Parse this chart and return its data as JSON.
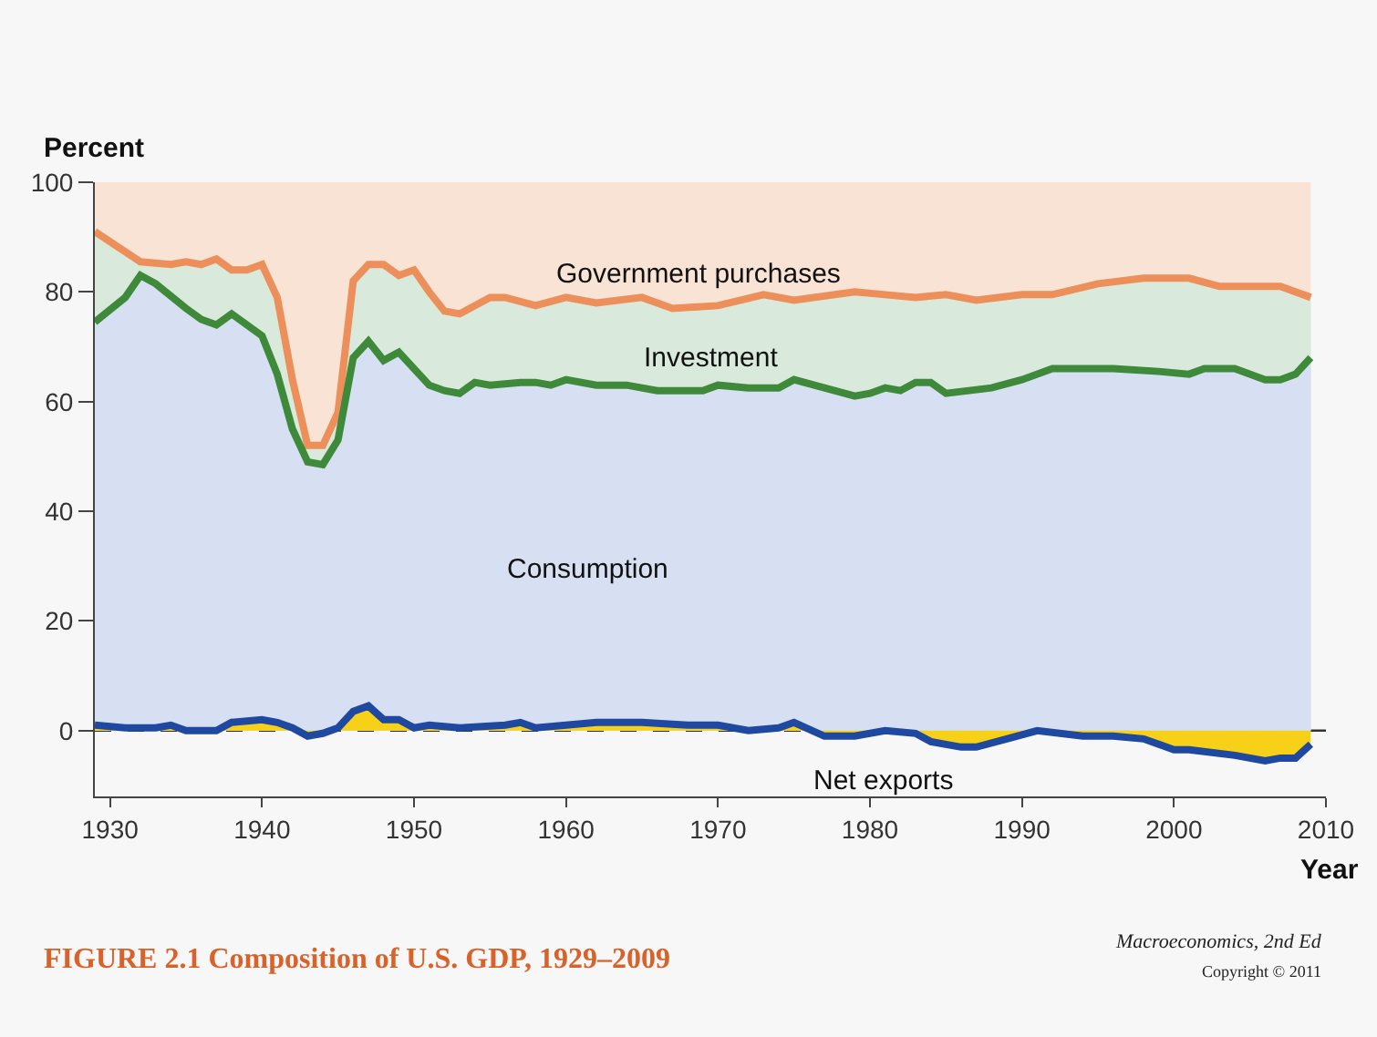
{
  "chart_data": {
    "type": "area",
    "title": "FIGURE 2.1 Composition of U.S. GDP, 1929–2009",
    "xlabel": "Year",
    "ylabel": "Percent",
    "annotations": [
      "Macroeconomics, 2nd Ed",
      "Copyright © 2011"
    ],
    "xlim": [
      1929,
      2010
    ],
    "xticks": [
      1930,
      1940,
      1950,
      1960,
      1970,
      1980,
      1990,
      2000,
      2010
    ],
    "ylim": [
      -12,
      100
    ],
    "yticks": [
      0,
      20,
      40,
      60,
      80,
      100
    ],
    "grid": false,
    "legend": false,
    "marker": "none",
    "line_style": "solid",
    "colors": [
      "#f8e3d4",
      "#ec8f5a",
      "#3f8a3a",
      "#1f48a0"
    ],
    "ref_lines": [
      {
        "axis": "y",
        "value": 0,
        "color": "#333333",
        "line_style": "dashed"
      }
    ],
    "series": [
      {
        "name": "Government purchases",
        "color": "#f8e3d4",
        "x": [
          1929,
          2009
        ],
        "values": [
          100,
          100
        ]
      },
      {
        "name": "Investment",
        "color": "#d9eadc",
        "x": [
          1929,
          1932,
          1934,
          1935,
          1936,
          1937,
          1938,
          1939,
          1940,
          1941,
          1942,
          1943,
          1944,
          1945,
          1946,
          1947,
          1948,
          1949,
          1950,
          1951,
          1952,
          1953,
          1955,
          1956,
          1958,
          1960,
          1962,
          1965,
          1967,
          1970,
          1973,
          1975,
          1979,
          1981,
          1983,
          1985,
          1987,
          1990,
          1992,
          1995,
          1998,
          2001,
          2003,
          2007,
          2009
        ],
        "values": [
          91,
          85.5,
          85,
          85.5,
          85,
          86,
          84,
          84,
          85,
          79,
          64,
          52,
          52,
          58,
          82,
          85,
          85,
          83,
          84,
          80,
          76.5,
          76,
          79,
          79,
          77.5,
          79,
          78,
          79,
          77,
          77.5,
          79.5,
          78.5,
          80,
          79.5,
          79,
          79.5,
          78.5,
          79.5,
          79.5,
          81.5,
          82.5,
          82.5,
          81,
          81,
          79
        ]
      },
      {
        "name": "Consumption",
        "color": "#d6e0f2",
        "x": [
          1929,
          1931,
          1932,
          1933,
          1935,
          1936,
          1937,
          1938,
          1940,
          1941,
          1942,
          1943,
          1944,
          1945,
          1946,
          1947,
          1948,
          1949,
          1951,
          1952,
          1953,
          1954,
          1955,
          1957,
          1958,
          1959,
          1960,
          1962,
          1964,
          1966,
          1969,
          1970,
          1972,
          1974,
          1975,
          1977,
          1979,
          1980,
          1981,
          1982,
          1983,
          1984,
          1985,
          1988,
          1990,
          1992,
          1996,
          1999,
          2001,
          2002,
          2004,
          2006,
          2007,
          2008,
          2009
        ],
        "values": [
          74.5,
          79,
          83,
          81.5,
          77,
          75,
          74,
          76,
          72,
          65,
          55,
          49,
          48.5,
          53,
          68,
          71,
          67.5,
          69,
          63,
          62,
          61.5,
          63.5,
          63,
          63.5,
          63.5,
          63,
          64,
          63,
          63,
          62,
          62,
          63,
          62.5,
          62.5,
          64,
          62.5,
          61,
          61.5,
          62.5,
          62,
          63.5,
          63.5,
          61.5,
          62.5,
          64,
          66,
          66,
          65.5,
          65,
          66,
          66,
          64,
          64,
          65,
          68
        ]
      },
      {
        "name": "Net exports",
        "color": "#f7d117",
        "x": [
          1929,
          1931,
          1933,
          1934,
          1935,
          1937,
          1938,
          1940,
          1941,
          1942,
          1943,
          1944,
          1945,
          1946,
          1947,
          1948,
          1949,
          1950,
          1951,
          1953,
          1956,
          1957,
          1958,
          1960,
          1962,
          1965,
          1968,
          1970,
          1972,
          1974,
          1975,
          1977,
          1979,
          1981,
          1983,
          1984,
          1986,
          1987,
          1989,
          1991,
          1994,
          1996,
          1998,
          2000,
          2001,
          2004,
          2006,
          2007,
          2008,
          2009
        ],
        "values": [
          1,
          0.5,
          0.5,
          1,
          0,
          0,
          1.5,
          2,
          1.5,
          0.5,
          -1,
          -0.5,
          0.5,
          3.5,
          4.5,
          2,
          2,
          0.5,
          1,
          0.5,
          1,
          1.5,
          0.5,
          1,
          1.5,
          1.5,
          1,
          1,
          0,
          0.5,
          1.5,
          -1,
          -1,
          0,
          -0.5,
          -2,
          -3,
          -3,
          -1.5,
          0,
          -1,
          -1,
          -1.5,
          -3.5,
          -3.5,
          -4.5,
          -5.5,
          -5,
          -5,
          -2.5
        ]
      }
    ]
  }
}
